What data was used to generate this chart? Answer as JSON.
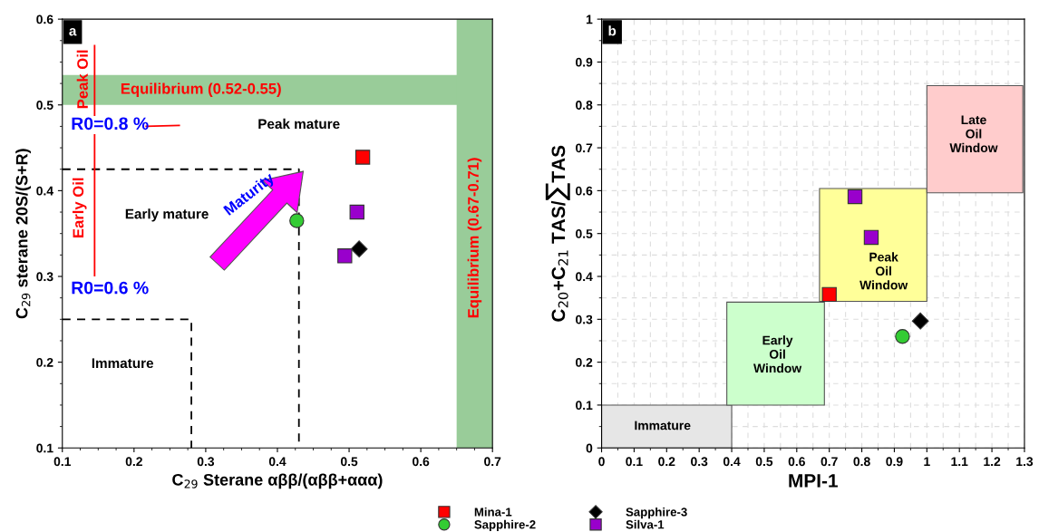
{
  "chart_data": [
    {
      "type": "scatter",
      "title": "a",
      "xlabel": "C$_{29}$ Sterane αββ/(αββ+ααα)",
      "ylabel": "C$_{29}$ sterane 20S/(S+R)",
      "xlim": [
        0.1,
        0.7
      ],
      "ylim": [
        0.1,
        0.6
      ],
      "xticks": [
        0.1,
        0.2,
        0.3,
        0.4,
        0.5,
        0.6,
        0.7
      ],
      "yticks": [
        0.1,
        0.2,
        0.3,
        0.4,
        0.5,
        0.6
      ],
      "grid": false,
      "bands": [
        {
          "axis": "y",
          "from": 0.5,
          "to": 0.535,
          "label": "Equilibrium (0.52-0.55)",
          "color": "#99cc99"
        },
        {
          "axis": "x",
          "from": 0.65,
          "to": 0.7,
          "label": "Equilibrium (0.67-0.71)",
          "color": "#99cc99"
        }
      ],
      "series": [
        {
          "type": "line",
          "color": "#000000",
          "line_style": "dashed",
          "marker": "none",
          "x": [
            0.1,
            0.28,
            0.28
          ],
          "values": [
            0.25,
            0.25,
            0.1
          ]
        },
        {
          "type": "line",
          "color": "#000000",
          "line_style": "dashed",
          "marker": "none",
          "x": [
            0.1,
            0.43,
            0.43
          ],
          "values": [
            0.425,
            0.425,
            0.1
          ]
        },
        {
          "type": "line",
          "color": "#ff0000",
          "line_style": "solid",
          "marker": "none",
          "x": [
            0.145,
            0.145
          ],
          "values": [
            0.569,
            0.488
          ]
        },
        {
          "type": "line",
          "color": "#ff0000",
          "line_style": "solid",
          "marker": "none",
          "x": [
            0.145,
            0.145
          ],
          "values": [
            0.465,
            0.301
          ]
        },
        {
          "type": "line",
          "color": "#ff0000",
          "line_style": "solid",
          "marker": "none",
          "x": [
            0.217,
            0.263
          ],
          "values": [
            0.475,
            0.476
          ]
        },
        {
          "color": "#ff0000",
          "marker": "square",
          "x": [
            0.519
          ],
          "values": [
            0.439
          ]
        },
        {
          "color": "#33cc33",
          "marker": "circle",
          "x": [
            0.427
          ],
          "values": [
            0.365
          ]
        },
        {
          "color": "#000000",
          "marker": "diamond",
          "x": [
            0.514
          ],
          "values": [
            0.332
          ]
        },
        {
          "color": "#9900cc",
          "marker": "square",
          "x": [
            0.511,
            0.494
          ],
          "values": [
            0.375,
            0.324
          ]
        }
      ],
      "annotations": [
        "Peak Oil",
        "Early Oil",
        "R0=0.8 %",
        "R0=0.6 %",
        "Peak mature",
        "Early mature",
        "Immature",
        "Maturity"
      ]
    },
    {
      "type": "scatter",
      "title": "b",
      "xlabel": "MPI-1",
      "ylabel": "C$_{20}$+C$_{21}$ TAS/∑TAS",
      "xlim": [
        0,
        1.3
      ],
      "ylim": [
        0,
        1
      ],
      "xticks": [
        0,
        0.1,
        0.2,
        0.3,
        0.4,
        0.5,
        0.6,
        0.7,
        0.8,
        0.9,
        1,
        1.1,
        1.2,
        1.3
      ],
      "yticks": [
        0,
        0.1,
        0.2,
        0.3,
        0.4,
        0.5,
        0.6,
        0.7,
        0.8,
        0.9,
        1
      ],
      "grid": true,
      "legend": "bottom",
      "series": [
        {
          "type": "area",
          "color": "#e6e6e6",
          "x": [
            0,
            0,
            0.4,
            0.4
          ],
          "values": [
            0,
            0.1,
            0.1,
            0
          ]
        },
        {
          "type": "area",
          "color": "#ccffcc",
          "x": [
            0.385,
            0.385,
            0.685,
            0.685
          ],
          "values": [
            0.1,
            0.34,
            0.34,
            0.1
          ]
        },
        {
          "type": "area",
          "color": "#ffff99",
          "x": [
            0.67,
            0.67,
            1.0,
            1.0
          ],
          "values": [
            0.342,
            0.605,
            0.605,
            0.342
          ]
        },
        {
          "type": "area",
          "color": "#ffcccc",
          "x": [
            1.0,
            1.0,
            1.295,
            1.295
          ],
          "values": [
            0.595,
            0.845,
            0.845,
            0.595
          ]
        },
        {
          "name": "Mina-1",
          "color": "#ff0000",
          "marker": "square",
          "x": [
            0.7
          ],
          "values": [
            0.358
          ]
        },
        {
          "name": "Sapphire-2",
          "color": "#33cc33",
          "marker": "circle",
          "x": [
            0.925
          ],
          "values": [
            0.26
          ]
        },
        {
          "name": "Sapphire-3",
          "color": "#000000",
          "marker": "diamond",
          "x": [
            0.98
          ],
          "values": [
            0.296
          ]
        },
        {
          "name": "Silva-1",
          "color": "#9900cc",
          "marker": "square",
          "x": [
            0.779,
            0.829
          ],
          "values": [
            0.586,
            0.491
          ]
        }
      ],
      "annotations": [
        "Immature",
        "Early\nOil\nWindow",
        "Peak\nOil\nWindow",
        "Late\nOil\nWindow"
      ]
    }
  ]
}
